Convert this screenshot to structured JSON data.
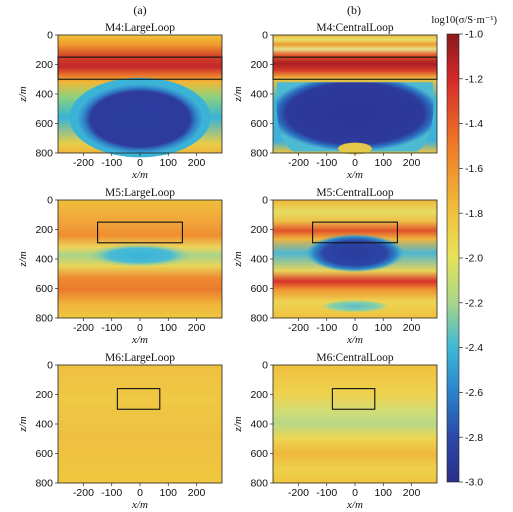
{
  "columns": [
    "(a)",
    "(b)"
  ],
  "colorbar": {
    "label": "log10(σ/S·m⁻¹)",
    "ticks": [
      "-1.0",
      "-1.2",
      "-1.4",
      "-1.6",
      "-1.8",
      "-2.0",
      "-2.2",
      "-2.4",
      "-2.6",
      "-2.8",
      "-3.0"
    ]
  },
  "chart_data": {
    "type": "heatmap",
    "xlabel": "x/m",
    "ylabel": "z/m",
    "x_ticks": [
      "-200",
      "-100",
      "0",
      "100",
      "200"
    ],
    "y_ticks": [
      "0",
      "200",
      "400",
      "600",
      "800"
    ],
    "xlim": [
      -290,
      290
    ],
    "ylim": [
      800,
      0
    ],
    "value_range": [
      -3.0,
      -1.0
    ],
    "panels": [
      {
        "title": "M4:LargeLoop",
        "model_box": {
          "x": [
            -290,
            290
          ],
          "z": [
            150,
            300
          ]
        },
        "features": [
          {
            "type": "layer",
            "z": [
              100,
              300
            ],
            "value": -1.2
          },
          {
            "type": "body",
            "x": [
              -230,
              230
            ],
            "z": [
              300,
              800
            ],
            "value": -3.0
          },
          {
            "type": "halo",
            "x": [
              -290,
              290
            ],
            "z": [
              280,
              800
            ],
            "value": -2.2
          }
        ]
      },
      {
        "title": "M4:CentralLoop",
        "model_box": {
          "x": [
            -290,
            290
          ],
          "z": [
            150,
            300
          ]
        },
        "features": [
          {
            "type": "layer",
            "z": [
              100,
              300
            ],
            "value": -1.15
          },
          {
            "type": "body",
            "x": [
              -270,
              270
            ],
            "z": [
              300,
              780
            ],
            "value": -3.0
          },
          {
            "type": "halo",
            "x": [
              -290,
              290
            ],
            "z": [
              280,
              800
            ],
            "value": -2.3
          }
        ]
      },
      {
        "title": "M5:LargeLoop",
        "model_box": {
          "x": [
            -150,
            150
          ],
          "z": [
            150,
            290
          ]
        },
        "features": [
          {
            "type": "layer",
            "z": [
              150,
              300
            ],
            "value": -1.45
          },
          {
            "type": "body",
            "x": [
              -180,
              180
            ],
            "z": [
              310,
              440
            ],
            "value": -2.25
          },
          {
            "type": "layer",
            "z": [
              520,
              680
            ],
            "value": -1.35
          }
        ]
      },
      {
        "title": "M5:CentralLoop",
        "model_box": {
          "x": [
            -150,
            150
          ],
          "z": [
            150,
            290
          ]
        },
        "features": [
          {
            "type": "layer",
            "z": [
              180,
              300
            ],
            "value": -1.3
          },
          {
            "type": "body",
            "x": [
              -160,
              160
            ],
            "z": [
              270,
              480
            ],
            "value": -2.9
          },
          {
            "type": "layer",
            "z": [
              540,
              650
            ],
            "value": -1.2
          },
          {
            "type": "body",
            "x": [
              -120,
              120
            ],
            "z": [
              690,
              760
            ],
            "value": -2.1
          }
        ]
      },
      {
        "title": "M6:LargeLoop",
        "model_box": {
          "x": [
            -80,
            70
          ],
          "z": [
            160,
            300
          ]
        },
        "features": [
          {
            "type": "layer",
            "z": [
              0,
              800
            ],
            "value": -1.75
          }
        ]
      },
      {
        "title": "M6:CentralLoop",
        "model_box": {
          "x": [
            -80,
            70
          ],
          "z": [
            160,
            300
          ]
        },
        "features": [
          {
            "type": "layer",
            "z": [
              330,
              420
            ],
            "value": -1.95
          },
          {
            "type": "layer",
            "z": [
              450,
              560
            ],
            "value": -1.6
          }
        ]
      }
    ]
  }
}
